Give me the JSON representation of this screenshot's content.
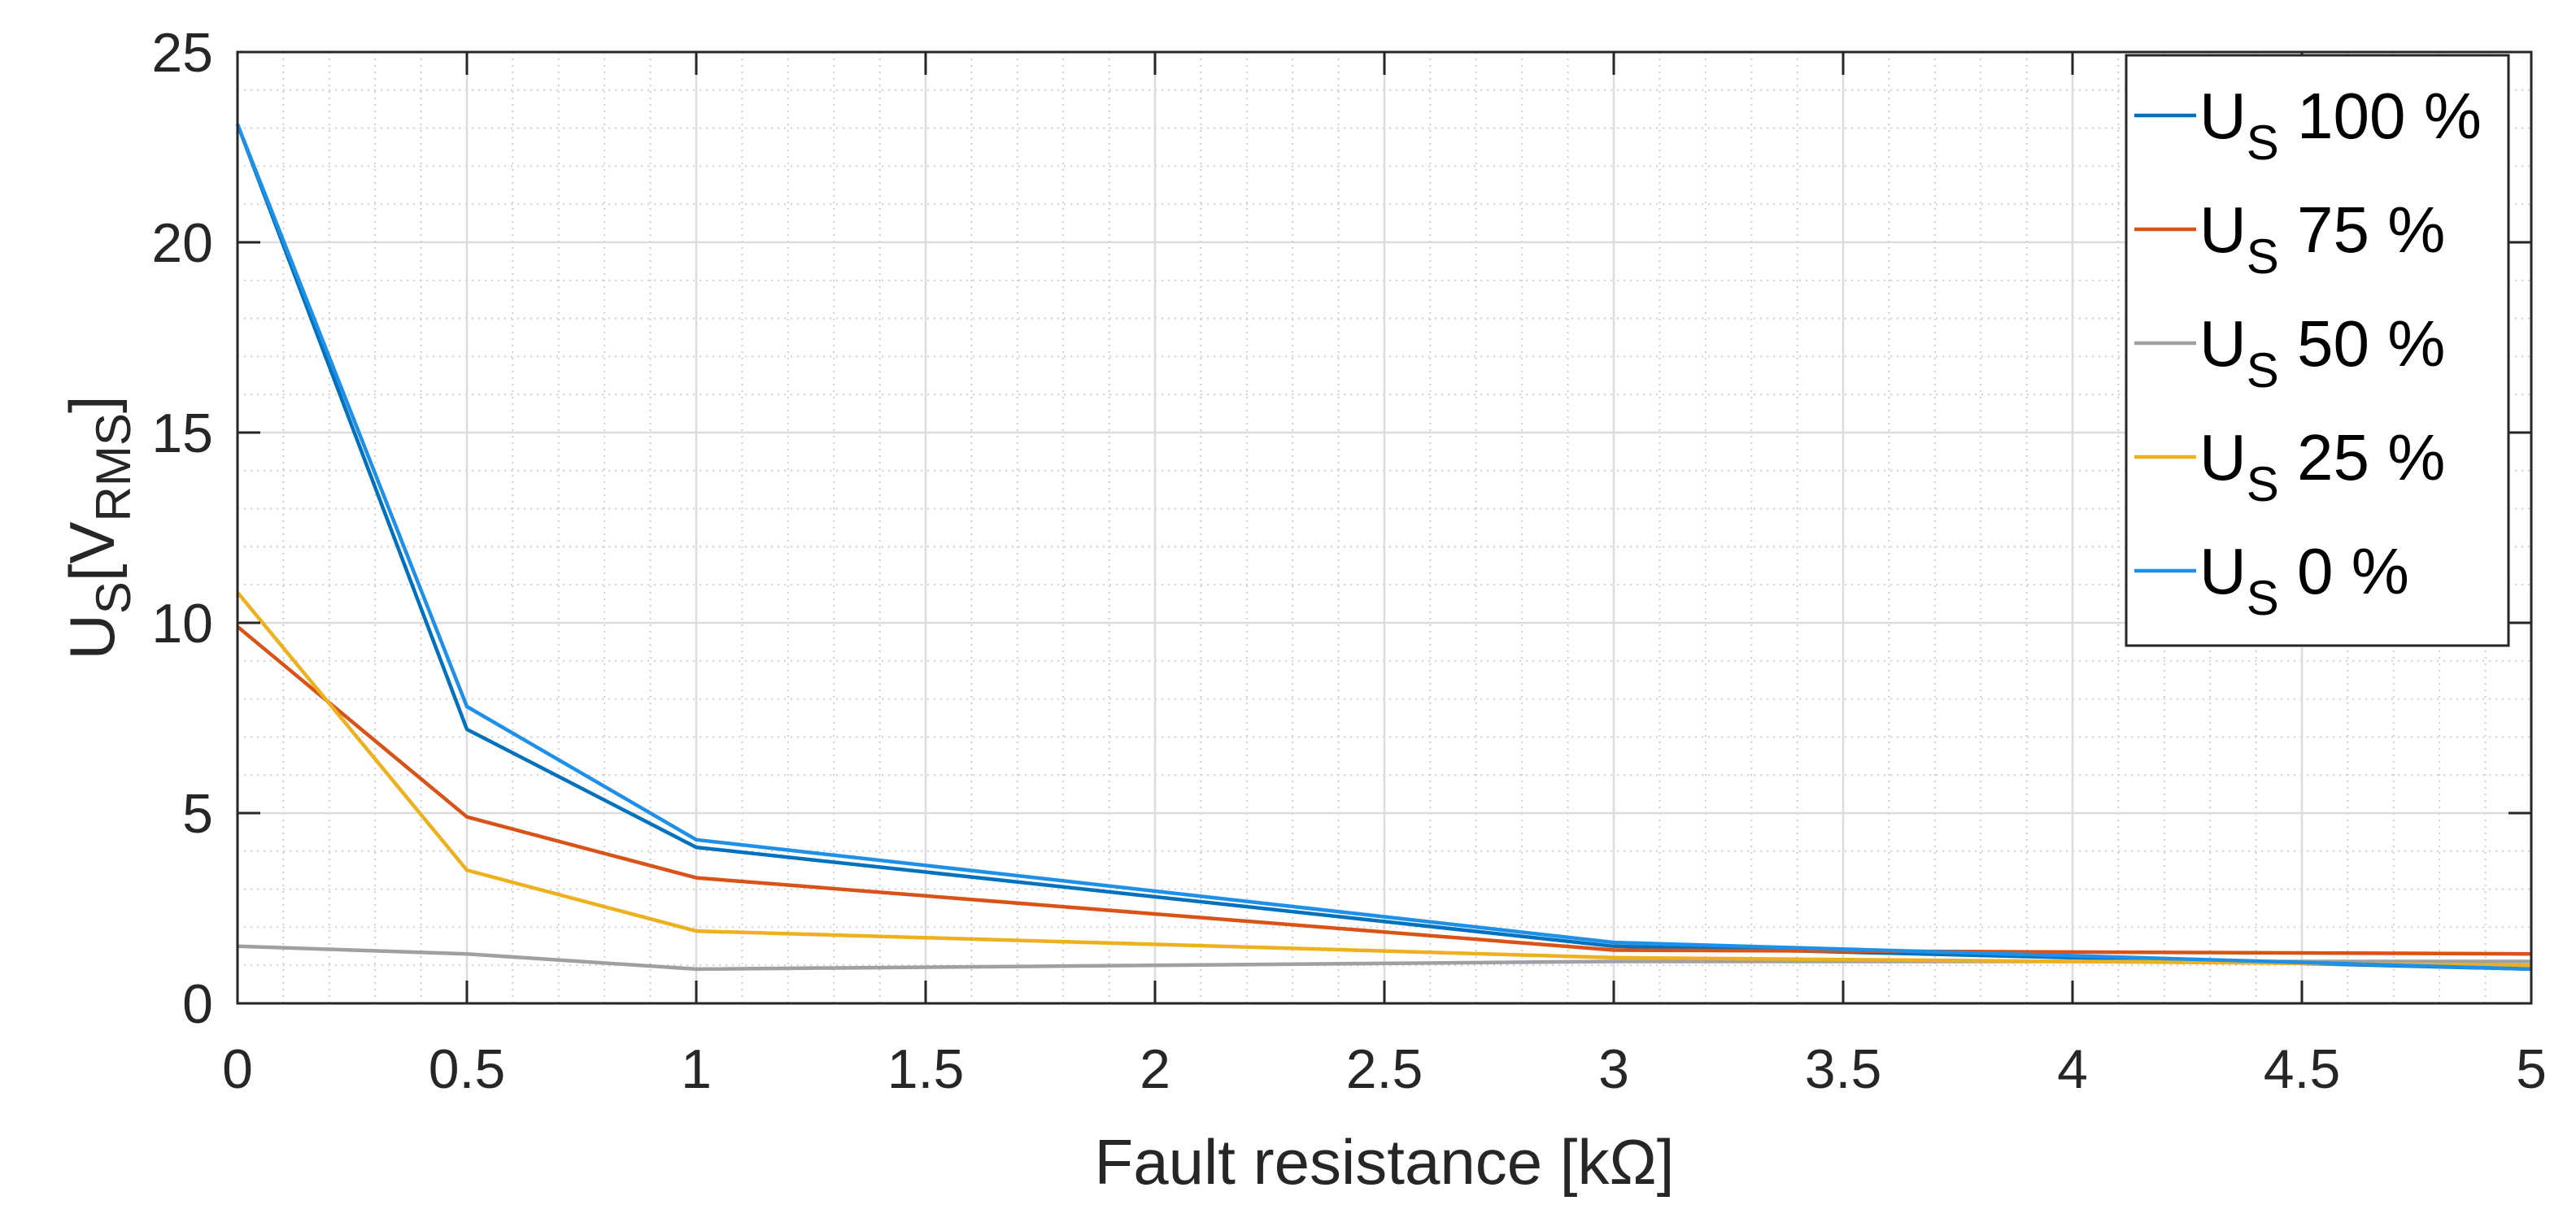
{
  "chart_data": {
    "type": "line",
    "xlabel": "Fault resistance [kΩ]",
    "ylabel": {
      "main": "U",
      "sub_s": "S",
      "bracket_open": "[V",
      "sub_rms": "RMS",
      "bracket_close": "]"
    },
    "xlim": [
      0,
      5
    ],
    "ylim": [
      0,
      25
    ],
    "xticks": [
      "0",
      "0.5",
      "1",
      "1.5",
      "2",
      "2.5",
      "3",
      "3.5",
      "4",
      "4.5",
      "5"
    ],
    "yticks": [
      "0",
      "5",
      "10",
      "15",
      "20",
      "25"
    ],
    "grid": true,
    "minor_grid": true,
    "legend_position": "top-right",
    "x": [
      0,
      0.5,
      1,
      3,
      5
    ],
    "series": [
      {
        "name": "U_S 100 %",
        "label_main": "U",
        "label_sub": "S",
        "label_rest": " 100 %",
        "color": "#0072BD",
        "values": [
          23.1,
          7.2,
          4.1,
          1.5,
          0.9
        ]
      },
      {
        "name": "U_S 75 %",
        "label_main": "U",
        "label_sub": "S",
        "label_rest": " 75 %",
        "color": "#D95319",
        "values": [
          9.9,
          4.9,
          3.3,
          1.4,
          1.3
        ]
      },
      {
        "name": "U_S 50 %",
        "label_main": "U",
        "label_sub": "S",
        "label_rest": " 50 %",
        "color": "#A0A0A0",
        "values": [
          1.5,
          1.3,
          0.9,
          1.1,
          1.1
        ]
      },
      {
        "name": "U_S 25 %",
        "label_main": "U",
        "label_sub": "S",
        "label_rest": " 25 %",
        "color": "#EDB120",
        "values": [
          10.8,
          3.5,
          1.9,
          1.2,
          1.0
        ]
      },
      {
        "name": "U_S 0 %",
        "label_main": "U",
        "label_sub": "S",
        "label_rest": " 0 %",
        "color": "#1E90E8",
        "values": [
          23.1,
          7.8,
          4.3,
          1.6,
          0.9
        ]
      }
    ]
  }
}
